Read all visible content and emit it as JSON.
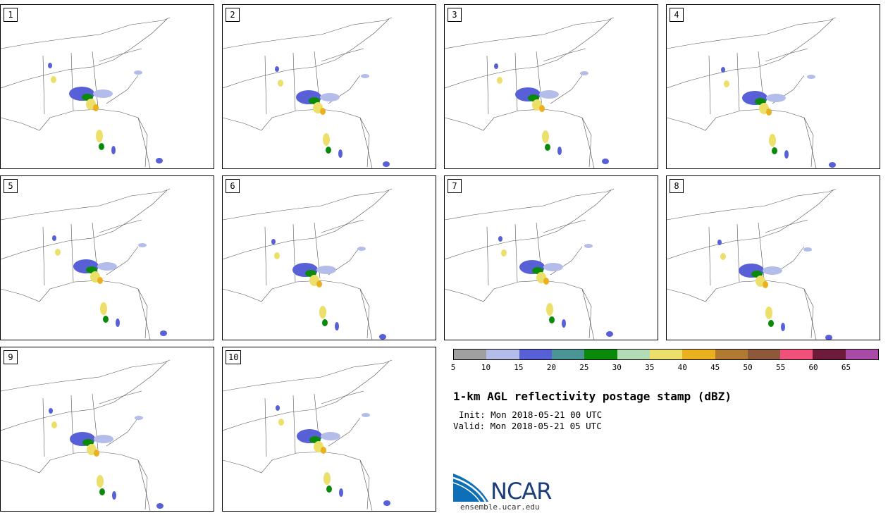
{
  "panels": [
    {
      "label": "1"
    },
    {
      "label": "2"
    },
    {
      "label": "3"
    },
    {
      "label": "4"
    },
    {
      "label": "5"
    },
    {
      "label": "6"
    },
    {
      "label": "7"
    },
    {
      "label": "8"
    },
    {
      "label": "9"
    },
    {
      "label": "10"
    }
  ],
  "colorbar": {
    "colors": [
      "#a0a0a0",
      "#b4bcea",
      "#5860d8",
      "#4a9696",
      "#0a8a0a",
      "#b4dcb4",
      "#ece06a",
      "#eab020",
      "#b07a30",
      "#8c5a3a",
      "#f0507a",
      "#6e1a3a",
      "#a84aa6"
    ],
    "ticks": [
      "5",
      "10",
      "15",
      "20",
      "25",
      "30",
      "35",
      "40",
      "45",
      "50",
      "55",
      "60",
      "65"
    ]
  },
  "title": "1-km AGL reflectivity postage stamp (dBZ)",
  "init": "Init: Mon 2018-05-21 00 UTC",
  "valid": "Valid: Mon 2018-05-21 05 UTC",
  "logo": {
    "name": "NCAR",
    "url": "ensemble.ucar.edu"
  }
}
